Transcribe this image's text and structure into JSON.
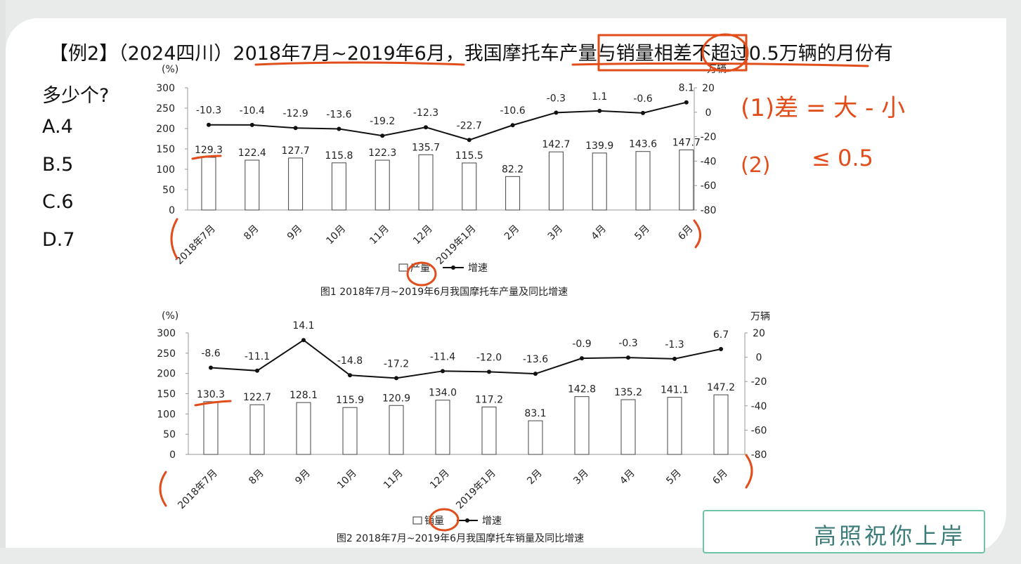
{
  "question": {
    "text": "【例2】（2024四川）2018年7月~2019年6月，我国摩托车产量与销量相差不超过0.5万辆的月份有",
    "text_line2": "多少个?",
    "options": [
      "A.4",
      "B.5",
      "C.6",
      "D.7"
    ]
  },
  "annotations": {
    "note1": "(1)差 = 大 - 小",
    "note2_num": "(2)",
    "note2": "≤ 0.5"
  },
  "brand": "高照祝你上岸",
  "colors": {
    "ink": "#222222",
    "handwriting": "#e24e1b",
    "brand": "#3d7d79"
  },
  "chart_data": [
    {
      "type": "bar",
      "caption": "图1  2018年7月~2019年6月我国摩托车产量及同比增速",
      "categories": [
        "2018年7月",
        "8月",
        "9月",
        "10月",
        "11月",
        "12月",
        "2019年1月",
        "2月",
        "3月",
        "4月",
        "5月",
        "6月"
      ],
      "left_axis_label": "(%)",
      "right_axis_label": "万辆",
      "left_ticks": [
        "300",
        "250",
        "200",
        "150",
        "100",
        "50",
        "0"
      ],
      "right_ticks": [
        "20",
        "0",
        "-20",
        "-40",
        "-60",
        "-80"
      ],
      "left_range": [
        0,
        300
      ],
      "right_range": [
        -80,
        20
      ],
      "series": [
        {
          "name": "产量",
          "kind": "bar",
          "axis": "left",
          "values": [
            129.3,
            122.4,
            127.7,
            115.8,
            122.3,
            135.7,
            115.5,
            82.2,
            142.7,
            139.9,
            143.6,
            147.7
          ]
        },
        {
          "name": "增速",
          "kind": "line",
          "axis": "right",
          "values": [
            -10.3,
            -10.4,
            -12.9,
            -13.6,
            -19.2,
            -12.3,
            -22.7,
            -10.6,
            -0.3,
            1.1,
            -0.6,
            8.1
          ]
        }
      ],
      "bar_labels": [
        "129.3",
        "122.4",
        "127.7",
        "115.8",
        "122.3",
        "135.7",
        "115.5",
        "82.2",
        "142.7",
        "139.9",
        "143.6",
        "147.7"
      ],
      "line_labels": [
        "-10.3",
        "-10.4",
        "-12.9",
        "-13.6",
        "-19.2",
        "-12.3",
        "-22.7",
        "-10.6",
        "-0.3",
        "1.1",
        "-0.6",
        "8.1"
      ],
      "legend": {
        "bar": "产量",
        "line": "增速"
      }
    },
    {
      "type": "bar",
      "caption": "图2  2018年7月~2019年6月我国摩托车销量及同比增速",
      "categories": [
        "2018年7月",
        "8月",
        "9月",
        "10月",
        "11月",
        "12月",
        "2019年1月",
        "2月",
        "3月",
        "4月",
        "5月",
        "6月"
      ],
      "left_axis_label": "(%)",
      "right_axis_label": "万辆",
      "left_ticks": [
        "300",
        "250",
        "200",
        "150",
        "100",
        "50",
        "0"
      ],
      "right_ticks": [
        "20",
        "0",
        "-20",
        "-40",
        "-60",
        "-80"
      ],
      "left_range": [
        0,
        300
      ],
      "right_range": [
        -80,
        20
      ],
      "series": [
        {
          "name": "销量",
          "kind": "bar",
          "axis": "left",
          "values": [
            130.3,
            122.7,
            128.1,
            115.9,
            120.9,
            134.0,
            117.2,
            83.1,
            142.8,
            135.2,
            141.1,
            147.2
          ]
        },
        {
          "name": "增速",
          "kind": "line",
          "axis": "right",
          "values": [
            -8.6,
            -11.1,
            14.1,
            -14.8,
            -17.2,
            -11.4,
            -12.0,
            -13.6,
            -0.9,
            -0.3,
            -1.3,
            6.7
          ]
        }
      ],
      "bar_labels": [
        "130.3",
        "122.7",
        "128.1",
        "115.9",
        "120.9",
        "134.0",
        "117.2",
        "83.1",
        "142.8",
        "135.2",
        "141.1",
        "147.2"
      ],
      "line_labels": [
        "-8.6",
        "-11.1",
        "14.1",
        "-14.8",
        "-17.2",
        "-11.4",
        "-12.0",
        "-13.6",
        "-0.9",
        "-0.3",
        "-1.3",
        "6.7"
      ],
      "legend": {
        "bar": "销量",
        "line": "增速"
      }
    }
  ]
}
